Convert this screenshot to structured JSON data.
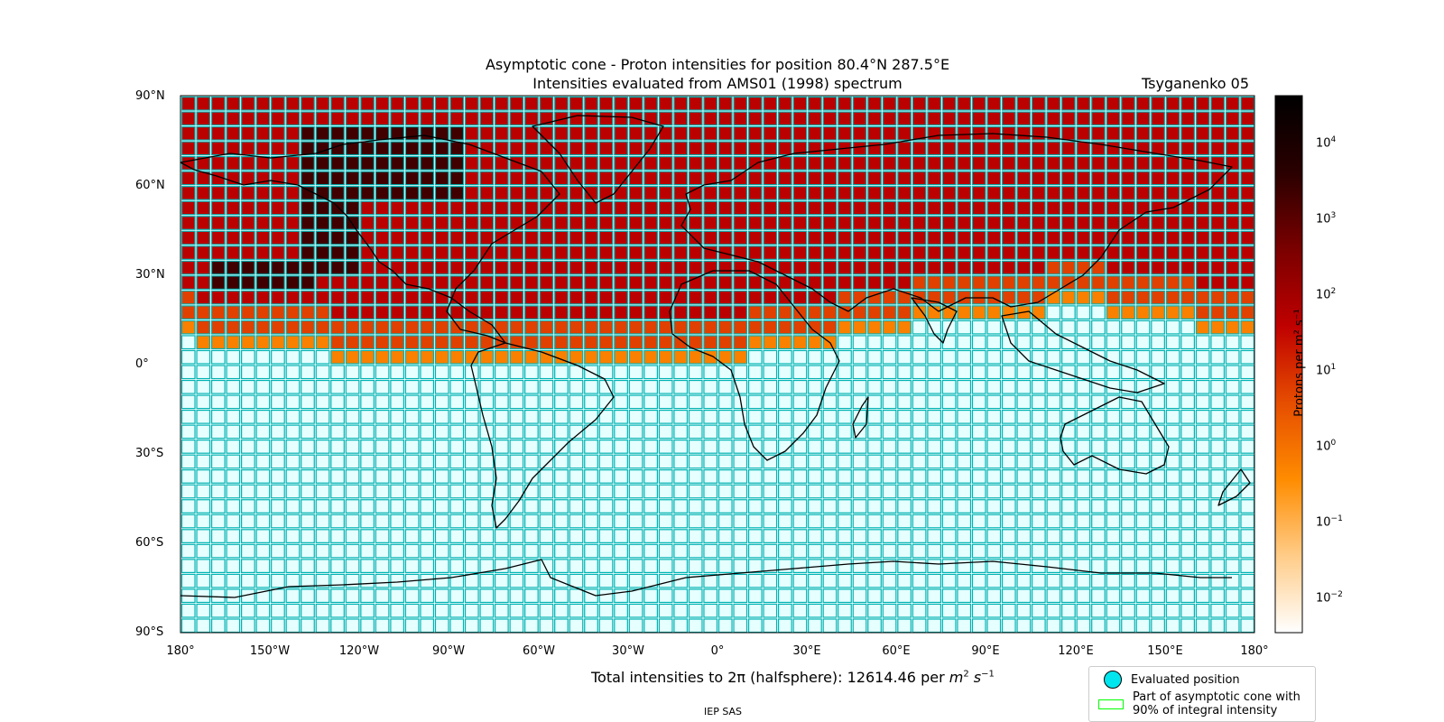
{
  "title": {
    "line1": "Asymptotic cone - Proton intensities for position 80.4°N 287.5°E",
    "line2": "Intensities evaluated from AMS01 (1998) spectrum",
    "model": "Tsyganenko 05"
  },
  "map": {
    "lat_labels": [
      "90°N",
      "60°N",
      "30°N",
      "0°",
      "30°S",
      "60°S",
      "90°S"
    ],
    "lon_labels": [
      "180°",
      "150°W",
      "120°W",
      "90°W",
      "60°W",
      "30°W",
      "0°",
      "30°E",
      "60°E",
      "90°E",
      "120°E",
      "150°E",
      "180°"
    ],
    "grid_step_lon_deg": 5,
    "grid_step_lat_deg": 5,
    "grid_color": "#00b3b3",
    "empty_cell_color": "#e6ffff"
  },
  "colorbar": {
    "label": "Protons per m² s⁻¹",
    "scale": "log",
    "ticks": [
      {
        "base": "10",
        "exp": "4"
      },
      {
        "base": "10",
        "exp": "3"
      },
      {
        "base": "10",
        "exp": "2"
      },
      {
        "base": "10",
        "exp": "1"
      },
      {
        "base": "10",
        "exp": "0"
      },
      {
        "base": "10",
        "exp": "−1"
      },
      {
        "base": "10",
        "exp": "−2"
      }
    ],
    "range": [
      0.003,
      40000
    ],
    "colors": [
      "#ffffff",
      "#ffcc88",
      "#ff8c00",
      "#e64d00",
      "#bf0000",
      "#7a0000",
      "#2a0000",
      "#000000"
    ]
  },
  "chart_data": {
    "type": "heatmap",
    "description_of_values": "Proton intensity per cell (log scale); cells south of the boundary are empty",
    "northern_band_intensity": 40,
    "dark_region_intensity": 2000,
    "boundary_band_intensity": 0.5,
    "boundary_latitude_profile_deg": [
      [
        -180,
        8
      ],
      [
        -170,
        7
      ],
      [
        -160,
        5
      ],
      [
        -150,
        4
      ],
      [
        -140,
        3
      ],
      [
        -120,
        2
      ],
      [
        -90,
        1
      ],
      [
        -60,
        0
      ],
      [
        -30,
        0
      ],
      [
        0,
        1
      ],
      [
        30,
        6
      ],
      [
        60,
        12
      ],
      [
        90,
        15
      ],
      [
        120,
        19
      ],
      [
        150,
        14
      ],
      [
        180,
        10
      ]
    ]
  },
  "total": {
    "prefix": "Total intensities to 2π (halfsphere): 12614.46 per ",
    "unit_m": "m",
    "unit_m_exp": "2",
    "unit_s": "s",
    "unit_s_exp": "−1"
  },
  "legend": {
    "evaluated": "Evaluated position",
    "cone_line1": "Part of asymptotic cone with",
    "cone_line2": "90% of integral intensity"
  },
  "footer": "IEP SAS"
}
